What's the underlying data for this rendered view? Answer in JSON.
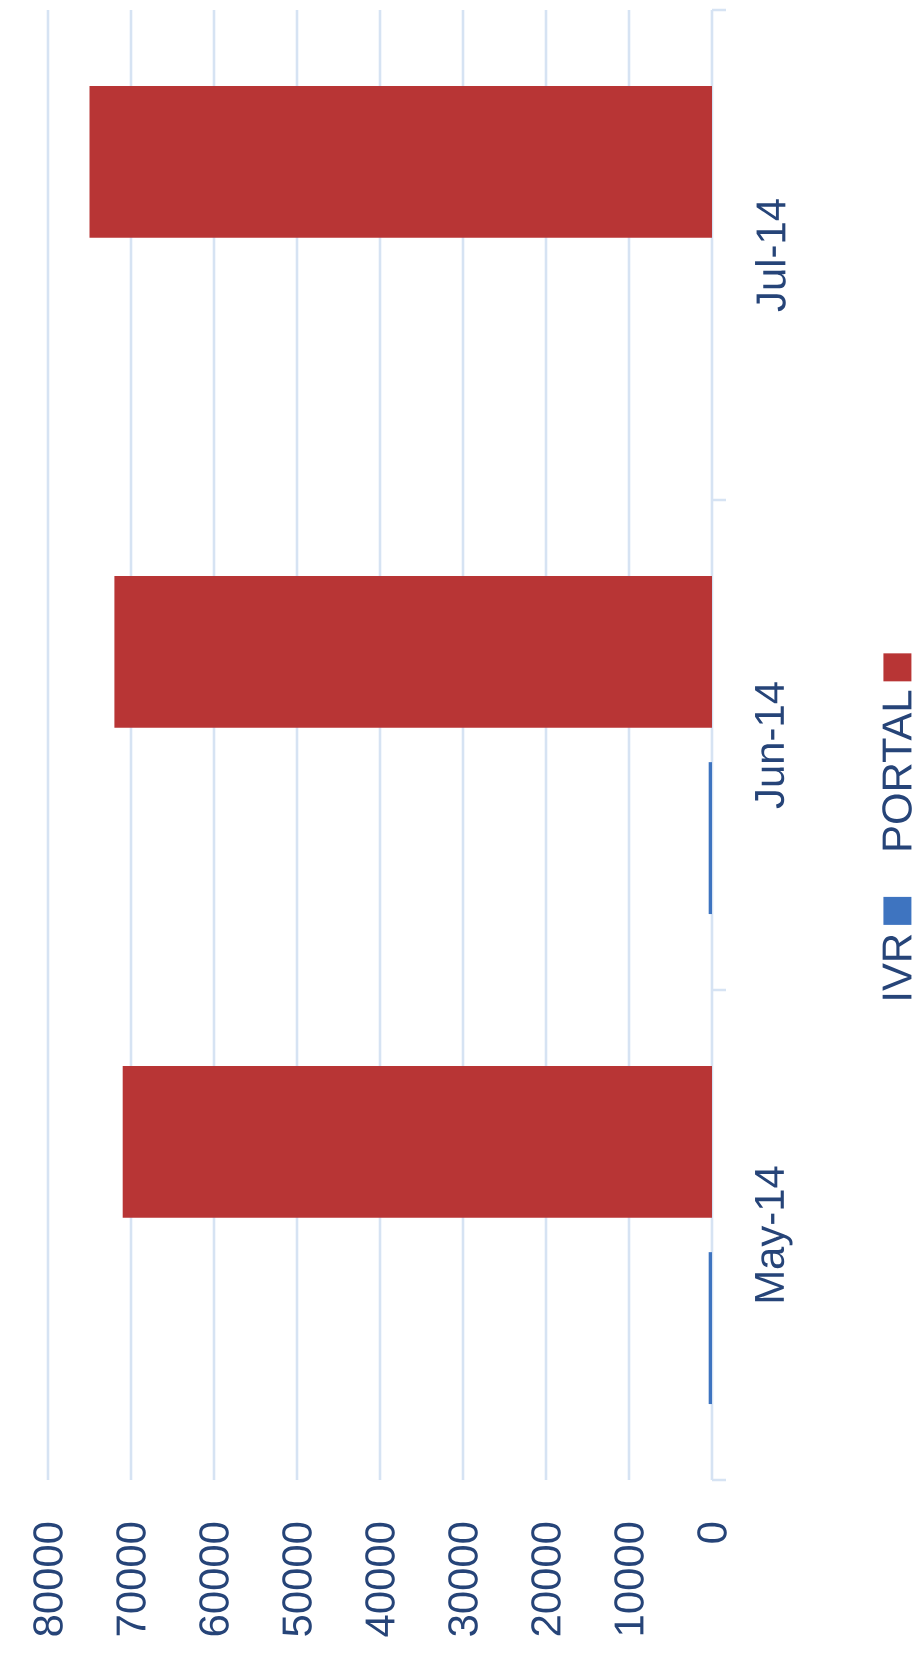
{
  "chart_data": {
    "type": "bar",
    "orientation": "horizontal",
    "categories": [
      "Jul-14",
      "Jun-14",
      "May-14"
    ],
    "series": [
      {
        "name": "IVR",
        "color": "#3e74c0",
        "values": [
          null,
          400,
          400
        ]
      },
      {
        "name": "PORTAL",
        "color": "#b83535",
        "values": [
          75000,
          72000,
          71000
        ]
      }
    ],
    "xlim": [
      80000,
      0
    ],
    "xticks": [
      80000,
      70000,
      60000,
      50000,
      40000,
      30000,
      20000,
      10000,
      0
    ],
    "grid": "x",
    "legend": "right"
  }
}
